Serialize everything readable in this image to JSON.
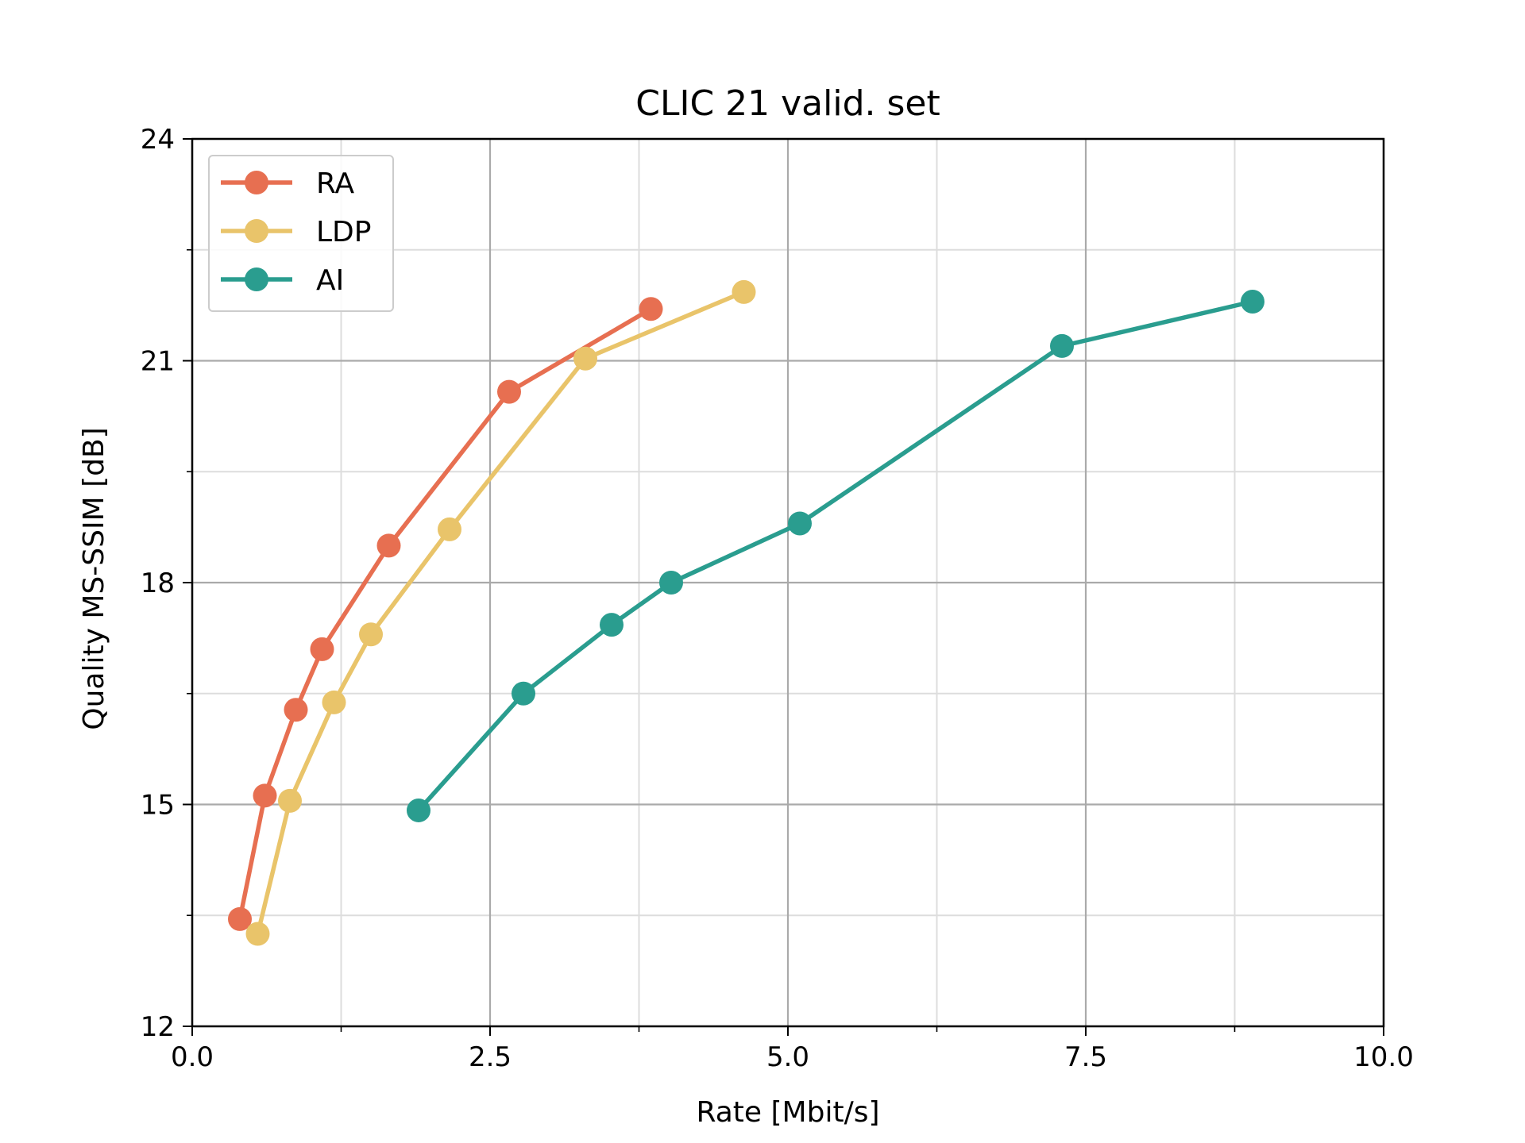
{
  "chart_data": {
    "type": "line",
    "title": "CLIC 21 valid. set",
    "xlabel": "Rate [Mbit/s]",
    "ylabel": "Quality MS-SSIM [dB]",
    "xlim": [
      0,
      10
    ],
    "ylim": [
      12,
      24
    ],
    "xticks": [
      0,
      2.5,
      5,
      7.5,
      10
    ],
    "xtick_labels": [
      "0.0",
      "2.5",
      "5.0",
      "7.5",
      "10.0"
    ],
    "xminor": [
      1.25,
      3.75,
      6.25,
      8.75
    ],
    "yticks": [
      12,
      15,
      18,
      21,
      24
    ],
    "ytick_labels": [
      "12",
      "15",
      "18",
      "21",
      "24"
    ],
    "yminor": [
      13.5,
      16.5,
      19.5,
      22.5
    ],
    "grid": true,
    "legend_position": "top-left",
    "series": [
      {
        "name": "RA",
        "color": "#e76f51",
        "x": [
          0.4,
          0.61,
          0.87,
          1.09,
          1.65,
          2.66,
          3.85
        ],
        "y": [
          13.45,
          15.12,
          16.28,
          17.1,
          18.5,
          20.58,
          21.7
        ]
      },
      {
        "name": "LDP",
        "color": "#e9c46a",
        "x": [
          0.55,
          0.82,
          1.19,
          1.5,
          2.16,
          3.3,
          4.63
        ],
        "y": [
          13.25,
          15.05,
          16.38,
          17.3,
          18.72,
          21.03,
          21.93
        ]
      },
      {
        "name": "AI",
        "color": "#2a9d8f",
        "x": [
          1.9,
          2.78,
          3.52,
          4.02,
          5.1,
          7.3,
          8.9
        ],
        "y": [
          14.92,
          16.5,
          17.43,
          18.0,
          18.8,
          21.2,
          21.8
        ]
      }
    ]
  }
}
